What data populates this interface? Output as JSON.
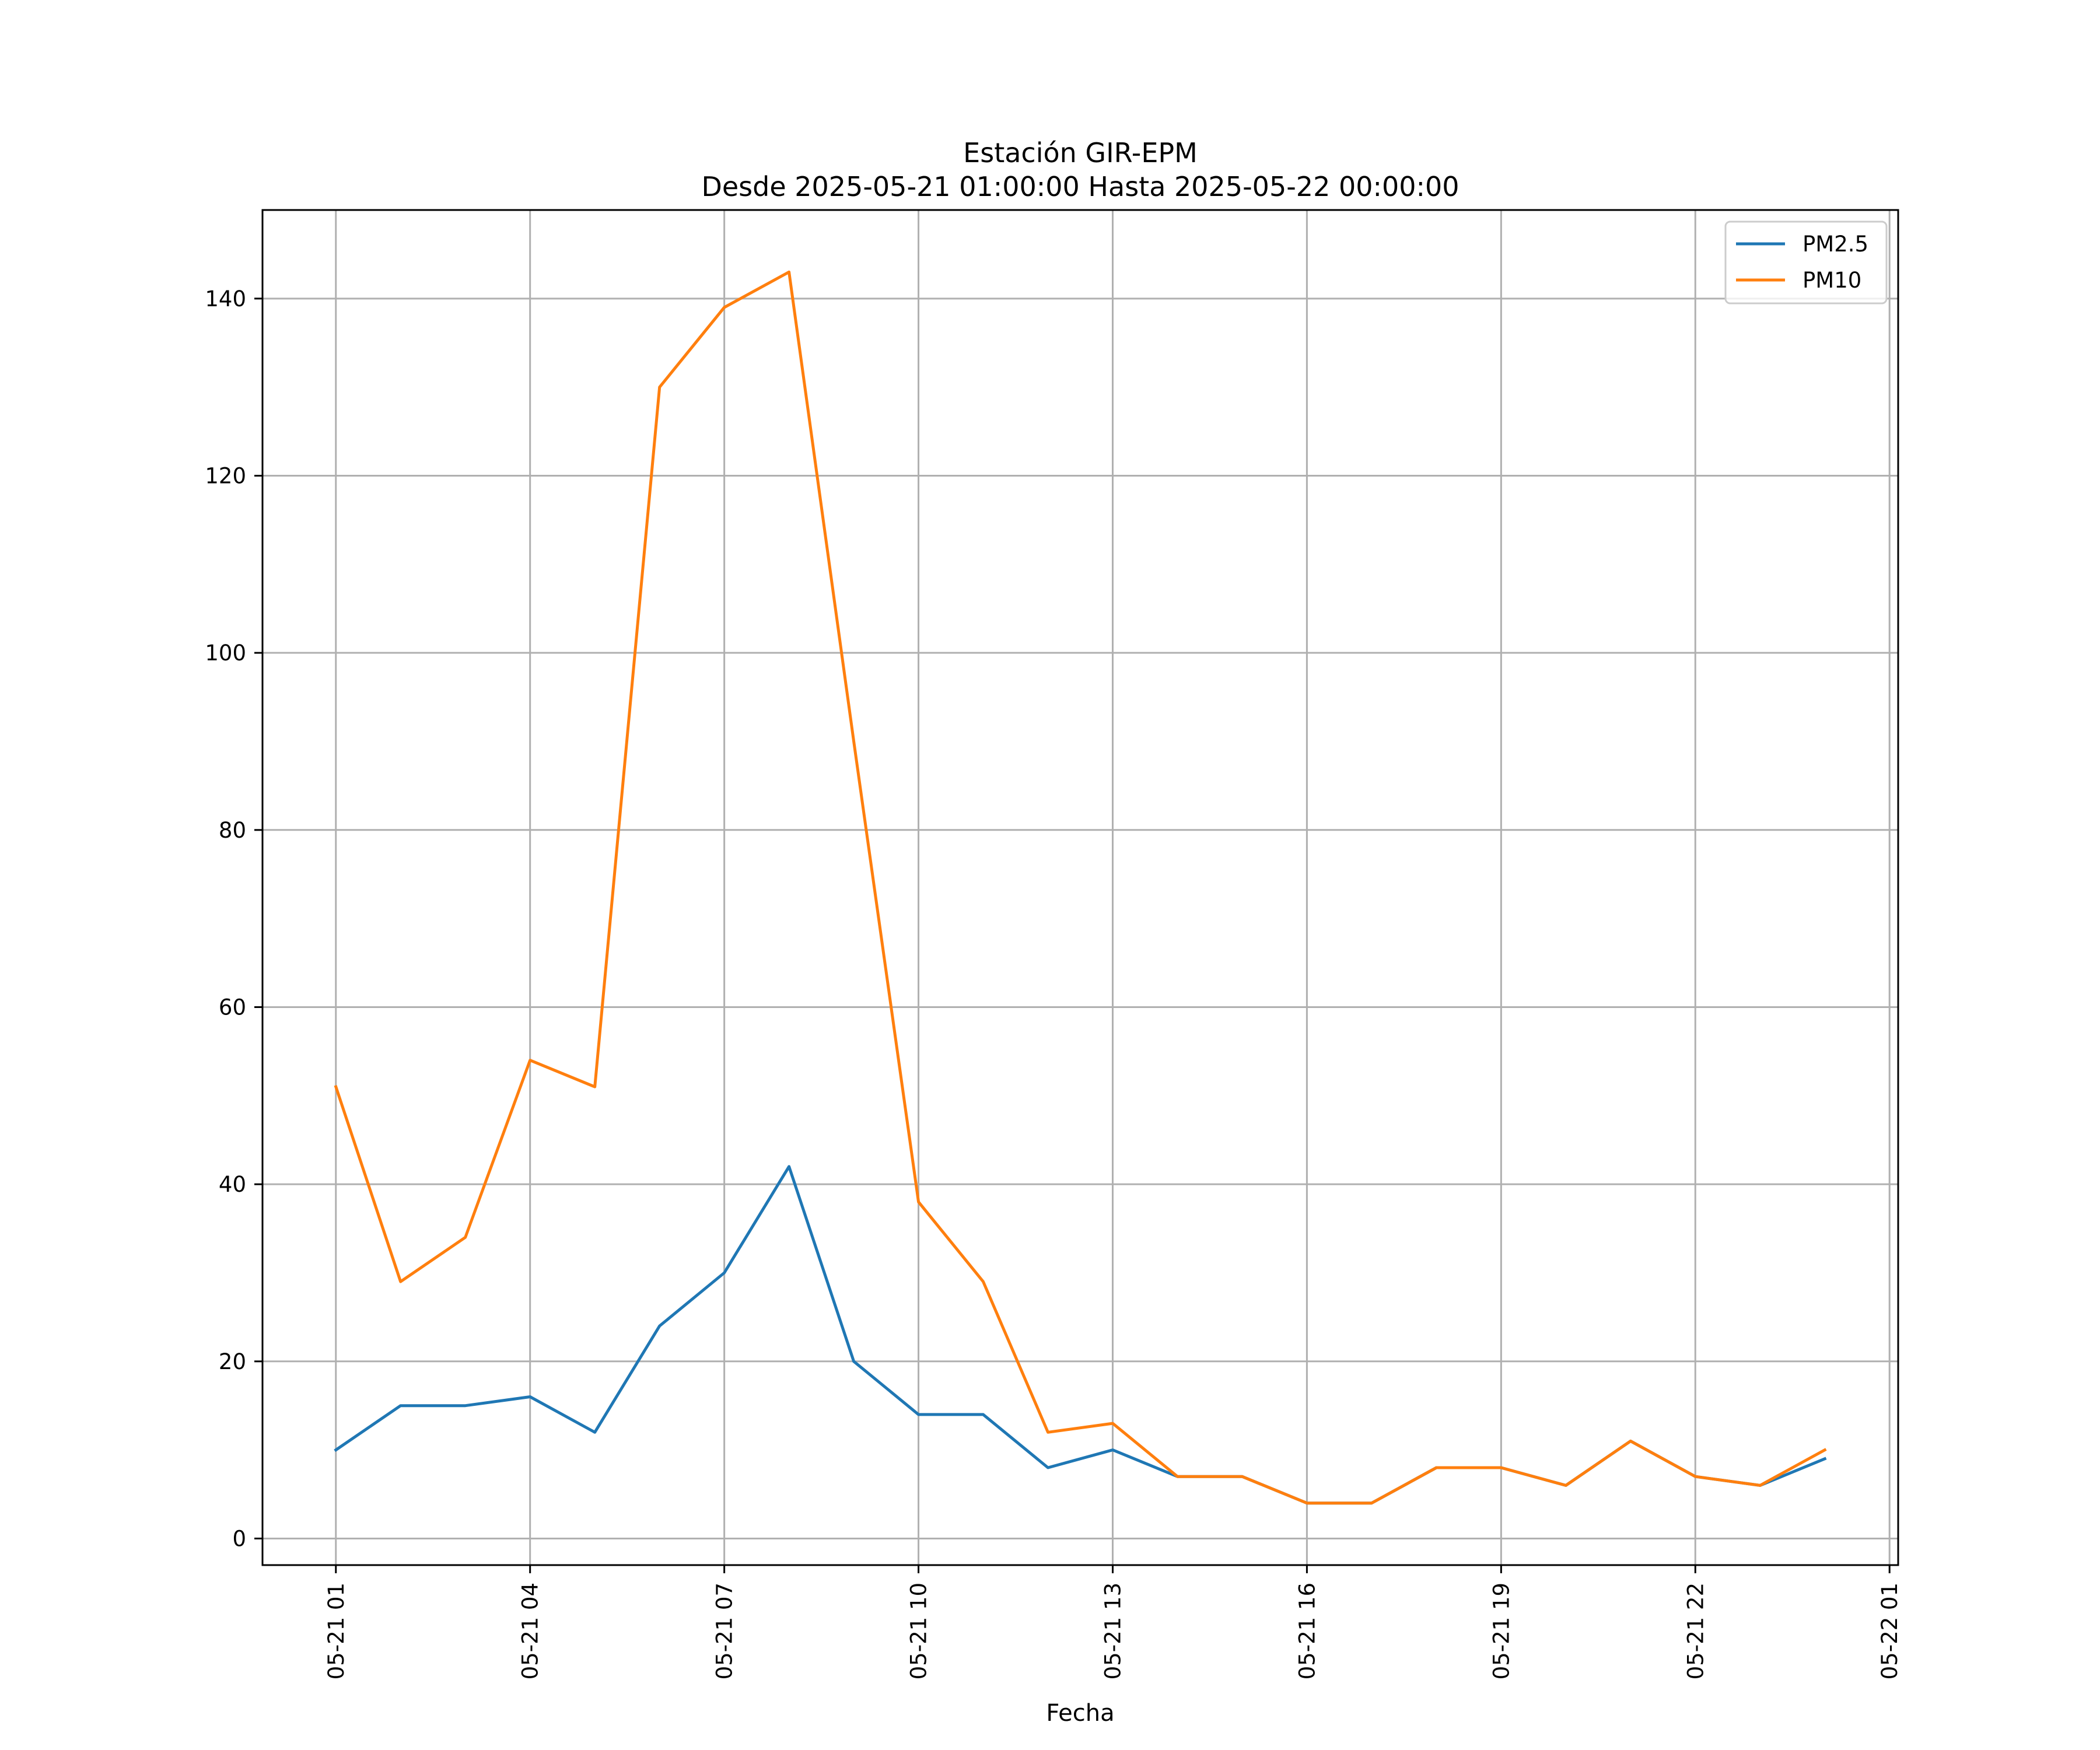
{
  "chart_data": {
    "type": "line",
    "title": "Estación GIR-EPM",
    "subtitle": "Desde 2025-05-21 01:00:00 Hasta 2025-05-22 00:00:00",
    "xlabel": "Fecha",
    "ylabel": "",
    "x": [
      "2025-05-21 01:00",
      "2025-05-21 02:00",
      "2025-05-21 03:00",
      "2025-05-21 04:00",
      "2025-05-21 05:00",
      "2025-05-21 06:00",
      "2025-05-21 07:00",
      "2025-05-21 08:00",
      "2025-05-21 09:00",
      "2025-05-21 10:00",
      "2025-05-21 11:00",
      "2025-05-21 12:00",
      "2025-05-21 13:00",
      "2025-05-21 14:00",
      "2025-05-21 15:00",
      "2025-05-21 16:00",
      "2025-05-21 17:00",
      "2025-05-21 18:00",
      "2025-05-21 19:00",
      "2025-05-21 20:00",
      "2025-05-21 21:00",
      "2025-05-21 22:00",
      "2025-05-21 23:00",
      "2025-05-22 00:00"
    ],
    "xticks": [
      "05-21 01",
      "05-21 04",
      "05-21 07",
      "05-21 10",
      "05-21 13",
      "05-21 16",
      "05-21 19",
      "05-21 22",
      "05-22 01"
    ],
    "xlim": [
      "2025-05-20 23:52",
      "2025-05-22 01:08"
    ],
    "yticks": [
      0,
      20,
      40,
      60,
      80,
      100,
      120,
      140
    ],
    "ylim": [
      -3,
      150
    ],
    "grid": true,
    "legend_position": "upper right",
    "series": [
      {
        "name": "PM2.5",
        "color": "#1f77b4",
        "values": [
          10,
          15,
          15,
          16,
          12,
          24,
          30,
          42,
          20,
          14,
          14,
          8,
          10,
          7,
          7,
          4,
          4,
          8,
          8,
          6,
          11,
          7,
          6,
          9
        ]
      },
      {
        "name": "PM10",
        "color": "#ff7f0e",
        "values": [
          51,
          29,
          34,
          54,
          51,
          130,
          139,
          143,
          90,
          38,
          29,
          12,
          13,
          7,
          7,
          4,
          4,
          8,
          8,
          6,
          11,
          7,
          6,
          10
        ]
      }
    ]
  }
}
